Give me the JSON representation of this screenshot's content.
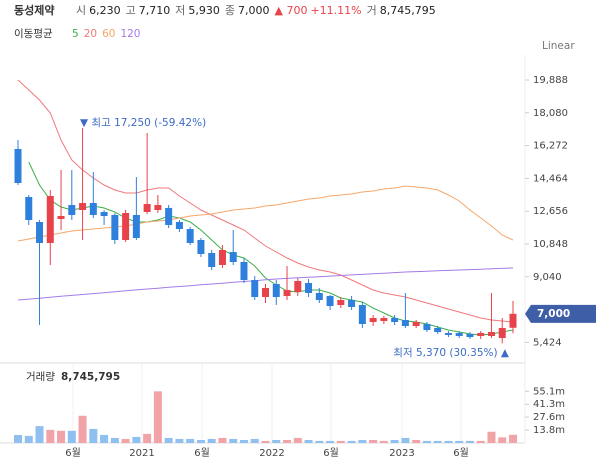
{
  "header": {
    "name": "동성제약",
    "items": [
      {
        "label": "시",
        "value": "6,230"
      },
      {
        "label": "고",
        "value": "7,710"
      },
      {
        "label": "저",
        "value": "5,930"
      },
      {
        "label": "종",
        "value": "7,000"
      }
    ],
    "change": "▲ 700",
    "change_pct": "+11.11%",
    "volume_label": "거",
    "volume_value": "8,745,795"
  },
  "chart_data": {
    "type": "candlestick",
    "scale_label": "Linear",
    "legend_title": "이동평균",
    "ylim": [
      4730,
      20990
    ],
    "yticks": [
      {
        "value": 19888,
        "label": "19,888"
      },
      {
        "value": 18080,
        "label": "18,080"
      },
      {
        "value": 16272,
        "label": "16,272"
      },
      {
        "value": 14464,
        "label": "14,464"
      },
      {
        "value": 12656,
        "label": "12,656"
      },
      {
        "value": 10848,
        "label": "10,848"
      },
      {
        "value": 9040,
        "label": "9,040"
      },
      {
        "value": 5424,
        "label": "5,424"
      }
    ],
    "current_price": {
      "value": 7000,
      "label": "7,000"
    },
    "up_color": "#e8434b",
    "down_color": "#2f80dc",
    "up_volume_color": "#f2a3a8",
    "down_volume_color": "#8fc0ef",
    "x_labels": [
      "6월",
      "2021",
      "6월",
      "2022",
      "6월",
      "2023",
      "6월"
    ],
    "annotations": {
      "high": "▼ 최고 17,250 (-59.42%)",
      "low": "최저 5,370 (30.35%) ▲"
    },
    "open": [
      16085,
      13439,
      12061,
      10903,
      12226,
      12997,
      12722,
      13108,
      12612,
      12447,
      11069,
      12447,
      12612,
      12722,
      12833,
      12061,
      11675,
      11069,
      10352,
      9691,
      10407,
      9856,
      8863,
      7926,
      8643,
      7981,
      8202,
      8698,
      8147,
      7981,
      7486,
      7761,
      7486,
      6549,
      6604,
      6769,
      6659,
      6328,
      6438,
      6218,
      5942,
      5942,
      5887,
      5777,
      5777,
      5666,
      6230
    ],
    "close": [
      14211,
      12171,
      10903,
      13494,
      12392,
      12447,
      13108,
      12447,
      12392,
      11069,
      12557,
      11179,
      13053,
      12998,
      11896,
      11675,
      10903,
      10297,
      9581,
      10518,
      9856,
      8863,
      7926,
      8422,
      7926,
      8312,
      8808,
      8147,
      7761,
      7431,
      7761,
      7376,
      6438,
      6769,
      6769,
      6549,
      6328,
      6549,
      6107,
      5997,
      5832,
      5777,
      5721,
      5942,
      5997,
      6218,
      7000
    ],
    "high": [
      16581,
      13549,
      12171,
      13825,
      14927,
      14927,
      17250,
      14817,
      12722,
      12557,
      12722,
      14541,
      16966,
      13549,
      12998,
      12171,
      11785,
      11179,
      10518,
      10793,
      11620,
      10076,
      9084,
      8643,
      8863,
      9636,
      8973,
      8918,
      8422,
      8036,
      7926,
      7981,
      7651,
      6935,
      6880,
      6935,
      8147,
      6659,
      6549,
      6328,
      6052,
      6052,
      5997,
      6052,
      8147,
      6769,
      7710
    ],
    "low": [
      14100,
      11896,
      6383,
      9691,
      11620,
      12171,
      11069,
      12282,
      11896,
      10848,
      10958,
      11069,
      12502,
      12557,
      11730,
      11510,
      10793,
      10132,
      9415,
      9525,
      9691,
      8698,
      7761,
      7596,
      7486,
      7761,
      7981,
      7926,
      7596,
      7210,
      7320,
      7210,
      6218,
      6328,
      6438,
      6383,
      6218,
      6218,
      5997,
      5887,
      5721,
      5666,
      5611,
      5611,
      5666,
      5370,
      5930
    ],
    "moving_averages": [
      {
        "name": "5",
        "color": "#3dae4a",
        "values": [
          null,
          15368,
          14100,
          13274,
          12887,
          12722,
          12833,
          12943,
          12833,
          12612,
          12282,
          12061,
          12061,
          12171,
          12392,
          12282,
          12061,
          11620,
          11069,
          10518,
          10242,
          10076,
          9636,
          8973,
          8588,
          8257,
          8202,
          8312,
          8312,
          8147,
          7871,
          7761,
          7651,
          7320,
          7045,
          6769,
          6604,
          6549,
          6438,
          6273,
          6107,
          5997,
          5887,
          5832,
          5887,
          5997,
          6107
        ]
      },
      {
        "name": "20",
        "color": "#f0787c",
        "values": [
          19888,
          19337,
          18786,
          18069,
          16581,
          15478,
          14927,
          14486,
          14100,
          13825,
          13660,
          13660,
          13825,
          13935,
          13935,
          13494,
          13108,
          12722,
          12447,
          12171,
          11896,
          11620,
          11179,
          10738,
          10407,
          10076,
          9801,
          9581,
          9415,
          9305,
          9140,
          8863,
          8588,
          8312,
          8147,
          8036,
          7926,
          7761,
          7596,
          7431,
          7266,
          7100,
          6935,
          6769,
          6659,
          6604,
          6549
        ]
      },
      {
        "name": "60",
        "color": "#f5a76a",
        "values": [
          11013,
          11124,
          11234,
          11344,
          11455,
          11565,
          11620,
          11675,
          11730,
          11785,
          11840,
          11951,
          12061,
          12116,
          12171,
          12282,
          12392,
          12447,
          12502,
          12612,
          12722,
          12777,
          12833,
          12943,
          12998,
          13108,
          13218,
          13329,
          13384,
          13494,
          13549,
          13604,
          13714,
          13770,
          13880,
          13935,
          14045,
          13990,
          13935,
          13825,
          13549,
          13218,
          12722,
          12282,
          11840,
          11344,
          11069
        ]
      },
      {
        "name": "120",
        "color": "#a57be8",
        "values": [
          7761,
          7811,
          7862,
          7912,
          7963,
          8013,
          8064,
          8114,
          8165,
          8215,
          8266,
          8317,
          8368,
          8414,
          8460,
          8506,
          8552,
          8598,
          8644,
          8690,
          8736,
          8782,
          8828,
          8874,
          8919,
          8951,
          8983,
          9015,
          9047,
          9079,
          9111,
          9143,
          9175,
          9207,
          9239,
          9271,
          9305,
          9327,
          9349,
          9371,
          9393,
          9415,
          9437,
          9459,
          9481,
          9503,
          9525
        ]
      }
    ],
    "volume_title": "거래량",
    "volume_total": "8,745,795",
    "volume_ylim": [
      0,
      75600000
    ],
    "volume_ticks": [
      {
        "value": 55100000,
        "label": "55.1m"
      },
      {
        "value": 41300000,
        "label": "41.3m"
      },
      {
        "value": 27600000,
        "label": "27.6m"
      },
      {
        "value": 13800000,
        "label": "13.8m"
      }
    ],
    "volumes": [
      8600000,
      7600000,
      18000000,
      14000000,
      13000000,
      13000000,
      29000000,
      15000000,
      8600000,
      5400000,
      4300000,
      6500000,
      9700000,
      55000000,
      5400000,
      4300000,
      4300000,
      3200000,
      4300000,
      5400000,
      4300000,
      3200000,
      4300000,
      2200000,
      3200000,
      3200000,
      5400000,
      3200000,
      2200000,
      2200000,
      2200000,
      2200000,
      3200000,
      3200000,
      2200000,
      3200000,
      5400000,
      3200000,
      2200000,
      2200000,
      2200000,
      2200000,
      2200000,
      2200000,
      12000000,
      6000000,
      8745795
    ]
  }
}
